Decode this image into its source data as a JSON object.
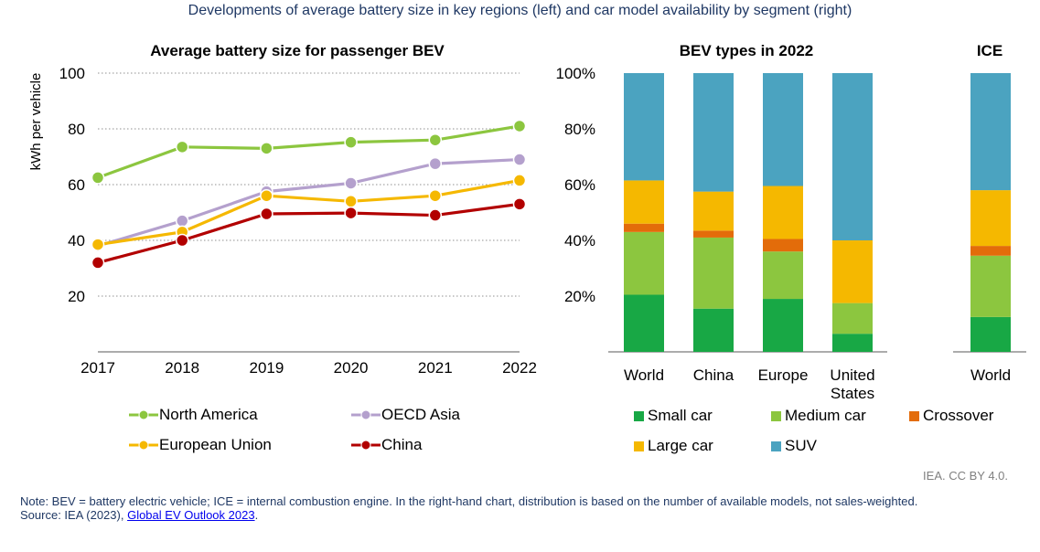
{
  "header": {
    "title": "Developments of average battery size in key regions (left) and car model availability by segment (right)"
  },
  "chart_data": [
    {
      "type": "line",
      "title": "Average battery size for passenger BEV",
      "xlabel": "",
      "ylabel": "kWh per vehicle",
      "x": [
        "2017",
        "2018",
        "2019",
        "2020",
        "2021",
        "2022"
      ],
      "ylim": [
        0,
        100
      ],
      "yticks": [
        "20",
        "40",
        "60",
        "80",
        "100"
      ],
      "grid": true,
      "legend_position": "bottom",
      "series": [
        {
          "name": "North America",
          "color": "#8cc63f",
          "values": [
            62.5,
            73.5,
            73,
            75.2,
            76,
            81
          ]
        },
        {
          "name": "OECD Asia",
          "color": "#b4a0cd",
          "values": [
            38,
            47,
            57.5,
            60.5,
            67.5,
            69
          ]
        },
        {
          "name": "European Union",
          "color": "#f5b800",
          "values": [
            38.5,
            43,
            56,
            54,
            56,
            61.5
          ]
        },
        {
          "name": "China",
          "color": "#b20000",
          "values": [
            32,
            40,
            49.5,
            49.8,
            49,
            53
          ]
        }
      ]
    },
    {
      "type": "bar",
      "stacked": true,
      "title": "BEV types in 2022",
      "categories": [
        "World",
        "China",
        "Europe",
        "United States"
      ],
      "ylim": [
        0,
        100
      ],
      "yticks": [
        "20%",
        "40%",
        "60%",
        "80%",
        "100%"
      ],
      "legend_position": "bottom",
      "series": [
        {
          "name": "Small car",
          "color": "#18a845",
          "values": [
            20.5,
            15.5,
            19,
            6.5
          ]
        },
        {
          "name": "Medium car",
          "color": "#8cc63f",
          "values": [
            22.5,
            25.5,
            17,
            11
          ]
        },
        {
          "name": "Crossover",
          "color": "#e36c0a",
          "values": [
            3,
            2.5,
            4.5,
            0
          ]
        },
        {
          "name": "Large car",
          "color": "#f5b800",
          "values": [
            15.5,
            14,
            19,
            22.5
          ]
        },
        {
          "name": "SUV",
          "color": "#4ba3c0",
          "values": [
            38.5,
            42.5,
            40.5,
            60
          ]
        }
      ]
    },
    {
      "type": "bar",
      "stacked": true,
      "title": "ICE",
      "categories": [
        "World"
      ],
      "ylim": [
        0,
        100
      ],
      "series": [
        {
          "name": "Small car",
          "color": "#18a845",
          "values": [
            12.5
          ]
        },
        {
          "name": "Medium car",
          "color": "#8cc63f",
          "values": [
            22
          ]
        },
        {
          "name": "Crossover",
          "color": "#e36c0a",
          "values": [
            3.5
          ]
        },
        {
          "name": "Large car",
          "color": "#f5b800",
          "values": [
            20
          ]
        },
        {
          "name": "SUV",
          "color": "#4ba3c0",
          "values": [
            42
          ]
        }
      ]
    }
  ],
  "footer": {
    "credit": "IEA. CC BY 4.0.",
    "note": "Note: BEV = battery electric vehicle; ICE = internal combustion engine. In the right-hand chart, distribution is based on the number of available models, not sales-weighted.",
    "source_prefix": "Source: IEA (2023), ",
    "source_link": "Global EV Outlook 2023",
    "source_suffix": "."
  }
}
